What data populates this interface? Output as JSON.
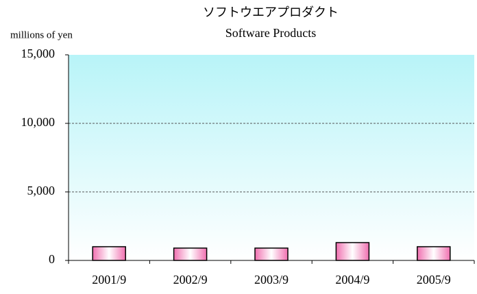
{
  "chart_data": {
    "type": "bar",
    "title": "ソフトウエアプロダクト",
    "subtitle": "Software Products",
    "y_label": "millions of yen",
    "categories": [
      "2001/9",
      "2002/9",
      "2003/9",
      "2004/9",
      "2005/9"
    ],
    "values": [
      1000,
      900,
      900,
      1300,
      1000
    ],
    "color": "#f080b8",
    "ylim": [
      0,
      15000
    ],
    "yticks": [
      0,
      {
        "value": 5000,
        "label": "5,000"
      },
      {
        "value": 10000,
        "label": "10,000"
      },
      {
        "value": 15000,
        "label": "15,000"
      }
    ],
    "grid": true
  }
}
